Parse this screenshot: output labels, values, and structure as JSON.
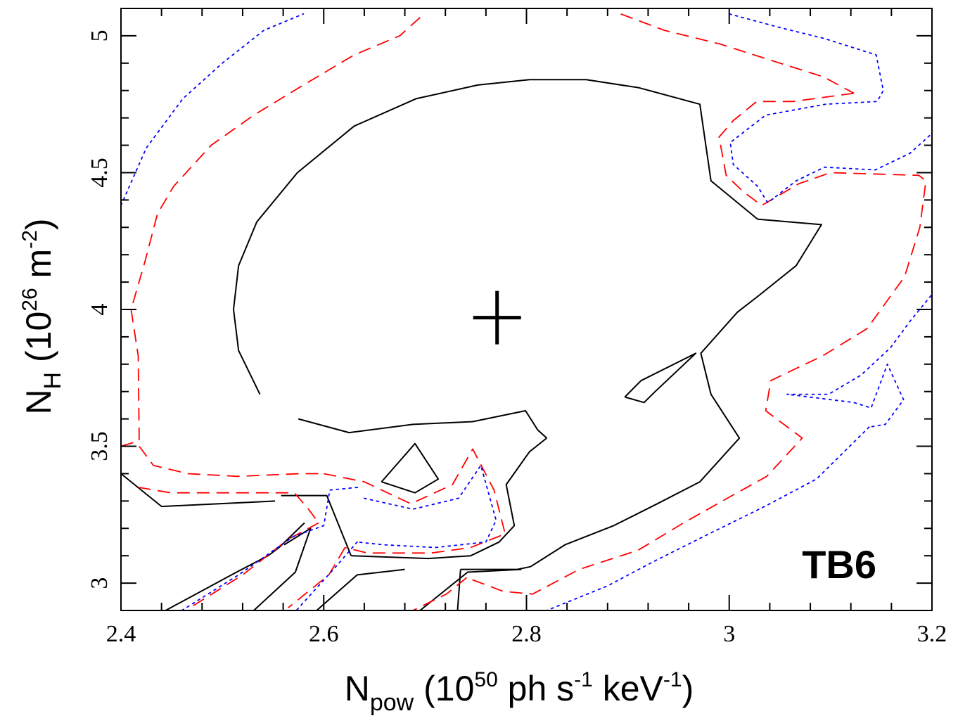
{
  "chart_data": {
    "type": "contour",
    "panel_label": "TB6",
    "xlabel": {
      "base": "N",
      "sub": "pow",
      "rest1": " (10",
      "sup1": "50",
      "rest2": " ph s",
      "sup2": "-1",
      "rest3": " keV",
      "sup3": "-1",
      "rest4": ")"
    },
    "ylabel": {
      "base": "N",
      "sub": "H",
      "rest1": " (10",
      "sup1": "26",
      "rest2": " m",
      "sup2": "-2",
      "rest3": ")"
    },
    "xlim": [
      2.4,
      3.2
    ],
    "ylim": [
      2.9,
      5.1
    ],
    "xticks": [
      {
        "value": 2.4,
        "label": "2.4"
      },
      {
        "value": 2.6,
        "label": "2.6"
      },
      {
        "value": 2.8,
        "label": "2.8"
      },
      {
        "value": 3.0,
        "label": "3"
      },
      {
        "value": 3.2,
        "label": "3.2"
      }
    ],
    "yticks": [
      {
        "value": 3.0,
        "label": "3"
      },
      {
        "value": 3.5,
        "label": "3.5"
      },
      {
        "value": 4.0,
        "label": "4"
      },
      {
        "value": 4.5,
        "label": "4.5"
      },
      {
        "value": 5.0,
        "label": "5"
      }
    ],
    "best_fit": {
      "x": 2.771,
      "y": 3.97
    },
    "contours": [
      {
        "level": "solid",
        "color": "#000000",
        "dash": "",
        "paths": [
          [
            [
              2.537,
              3.69
            ],
            [
              2.516,
              3.85
            ],
            [
              2.511,
              4.0
            ],
            [
              2.516,
              4.16
            ],
            [
              2.534,
              4.32
            ],
            [
              2.574,
              4.5
            ],
            [
              2.63,
              4.67
            ],
            [
              2.691,
              4.77
            ],
            [
              2.752,
              4.82
            ],
            [
              2.803,
              4.84
            ],
            [
              2.859,
              4.84
            ],
            [
              2.911,
              4.81
            ],
            [
              2.971,
              4.75
            ],
            [
              2.982,
              4.47
            ],
            [
              3.028,
              4.33
            ],
            [
              3.091,
              4.31
            ],
            [
              3.066,
              4.16
            ],
            [
              3.029,
              4.05
            ],
            [
              3.008,
              3.99
            ],
            [
              2.972,
              3.84
            ],
            [
              2.982,
              3.69
            ],
            [
              3.01,
              3.53
            ],
            [
              2.971,
              3.37
            ],
            [
              2.929,
              3.29
            ],
            [
              2.886,
              3.21
            ],
            [
              2.838,
              3.14
            ],
            [
              2.804,
              3.06
            ],
            [
              2.791,
              3.05
            ],
            [
              2.739,
              3.05
            ],
            [
              2.735,
              3.05
            ]
          ],
          [
            [
              2.732,
              2.9
            ],
            [
              2.735,
              3.05
            ]
          ],
          [
            [
              2.575,
              3.6
            ],
            [
              2.625,
              3.55
            ],
            [
              2.688,
              3.58
            ],
            [
              2.747,
              3.59
            ],
            [
              2.799,
              3.63
            ],
            [
              2.811,
              3.56
            ],
            [
              2.82,
              3.53
            ]
          ],
          [
            [
              2.82,
              3.53
            ],
            [
              2.803,
              3.48
            ],
            [
              2.78,
              3.36
            ],
            [
              2.788,
              3.21
            ],
            [
              2.773,
              3.15
            ],
            [
              2.745,
              3.1
            ],
            [
              2.703,
              3.09
            ],
            [
              2.628,
              3.1
            ],
            [
              2.627,
              3.1
            ]
          ],
          [
            [
              2.558,
              3.32
            ],
            [
              2.603,
              3.32
            ],
            [
              2.627,
              3.1
            ]
          ],
          [
            [
              2.561,
              3.14
            ],
            [
              2.587,
              3.2
            ],
            [
              2.572,
              3.04
            ],
            [
              2.531,
              2.9
            ]
          ],
          [
            [
              2.4,
              3.4
            ],
            [
              2.44,
              3.28
            ],
            [
              2.497,
              3.29
            ],
            [
              2.552,
              3.3
            ]
          ],
          [
            [
              2.657,
              3.37
            ],
            [
              2.69,
              3.51
            ],
            [
              2.713,
              3.38
            ],
            [
              2.69,
              3.33
            ],
            [
              2.657,
              3.37
            ]
          ],
          [
            [
              2.897,
              3.68
            ],
            [
              2.913,
              3.74
            ],
            [
              2.967,
              3.84
            ],
            [
              2.927,
              3.7
            ],
            [
              2.916,
              3.66
            ],
            [
              2.897,
              3.68
            ]
          ],
          [
            [
              2.444,
              2.9
            ],
            [
              2.514,
              3.04
            ],
            [
              2.545,
              3.1
            ],
            [
              2.556,
              3.13
            ],
            [
              2.581,
              3.22
            ]
          ],
          [
            [
              2.593,
              2.9
            ],
            [
              2.633,
              3.03
            ],
            [
              2.68,
              3.05
            ]
          ],
          [
            [
              2.695,
              2.9
            ],
            [
              2.742,
              3.04
            ],
            [
              2.795,
              3.05
            ]
          ]
        ]
      },
      {
        "level": "dashed",
        "color": "#ff0000",
        "dash": "18,10",
        "paths": [
          [
            [
              2.4,
              3.5
            ],
            [
              2.418,
              3.52
            ],
            [
              2.417,
              3.83
            ],
            [
              2.41,
              4.0
            ],
            [
              2.424,
              4.18
            ],
            [
              2.436,
              4.35
            ],
            [
              2.452,
              4.45
            ],
            [
              2.489,
              4.6
            ],
            [
              2.531,
              4.71
            ],
            [
              2.58,
              4.82
            ],
            [
              2.63,
              4.93
            ],
            [
              2.675,
              5.0
            ],
            [
              2.699,
              5.08
            ]
          ],
          [
            [
              2.893,
              5.08
            ],
            [
              2.936,
              5.02
            ],
            [
              2.991,
              4.97
            ],
            [
              3.05,
              4.9
            ],
            [
              3.093,
              4.85
            ],
            [
              3.123,
              4.79
            ]
          ],
          [
            [
              3.123,
              4.79
            ],
            [
              3.063,
              4.76
            ],
            [
              3.027,
              4.76
            ],
            [
              3.004,
              4.69
            ],
            [
              2.99,
              4.63
            ],
            [
              2.997,
              4.49
            ],
            [
              3.014,
              4.43
            ],
            [
              3.032,
              4.38
            ],
            [
              3.069,
              4.46
            ],
            [
              3.1,
              4.5
            ],
            [
              3.187,
              4.49
            ],
            [
              3.194,
              4.47
            ],
            [
              3.188,
              4.3
            ],
            [
              3.173,
              4.12
            ],
            [
              3.136,
              3.93
            ],
            [
              3.092,
              3.83
            ],
            [
              3.041,
              3.74
            ],
            [
              3.036,
              3.63
            ],
            [
              3.072,
              3.53
            ],
            [
              3.037,
              3.39
            ],
            [
              2.998,
              3.31
            ],
            [
              2.955,
              3.22
            ],
            [
              2.91,
              3.12
            ],
            [
              2.852,
              3.05
            ],
            [
              2.806,
              2.96
            ],
            [
              2.777,
              2.97
            ],
            [
              2.741,
              3.02
            ]
          ],
          [
            [
              2.741,
              3.02
            ],
            [
              2.721,
              2.96
            ],
            [
              2.688,
              2.9
            ]
          ],
          [
            [
              2.418,
              3.5
            ],
            [
              2.432,
              3.43
            ],
            [
              2.466,
              3.4
            ],
            [
              2.515,
              3.39
            ],
            [
              2.576,
              3.4
            ],
            [
              2.6,
              3.4
            ]
          ],
          [
            [
              2.6,
              3.4
            ],
            [
              2.64,
              3.37
            ],
            [
              2.686,
              3.29
            ],
            [
              2.727,
              3.36
            ],
            [
              2.747,
              3.49
            ],
            [
              2.768,
              3.34
            ],
            [
              2.779,
              3.18
            ],
            [
              2.745,
              3.13
            ],
            [
              2.706,
              3.11
            ],
            [
              2.643,
              3.11
            ],
            [
              2.621,
              3.13
            ]
          ],
          [
            [
              2.621,
              3.13
            ],
            [
              2.605,
              3.03
            ],
            [
              2.565,
              2.91
            ]
          ],
          [
            [
              2.417,
              3.35
            ],
            [
              2.449,
              3.33
            ],
            [
              2.508,
              3.33
            ],
            [
              2.571,
              3.33
            ],
            [
              2.585,
              3.27
            ],
            [
              2.595,
              3.22
            ]
          ],
          [
            [
              2.595,
              3.22
            ],
            [
              2.565,
              3.16
            ],
            [
              2.52,
              3.03
            ],
            [
              2.468,
              2.91
            ]
          ]
        ]
      },
      {
        "level": "dotted",
        "color": "#0000ff",
        "dash": "3,6",
        "paths": [
          [
            [
              2.4,
              4.38
            ],
            [
              2.425,
              4.59
            ],
            [
              2.461,
              4.77
            ],
            [
              2.5,
              4.9
            ],
            [
              2.541,
              5.02
            ],
            [
              2.58,
              5.08
            ]
          ],
          [
            [
              3.0,
              5.08
            ],
            [
              3.05,
              5.03
            ],
            [
              3.094,
              4.99
            ],
            [
              3.145,
              4.93
            ],
            [
              3.152,
              4.8
            ],
            [
              3.146,
              4.76
            ],
            [
              3.095,
              4.75
            ],
            [
              3.036,
              4.71
            ],
            [
              3.001,
              4.61
            ],
            [
              3.004,
              4.53
            ],
            [
              3.028,
              4.45
            ],
            [
              3.038,
              4.39
            ],
            [
              3.066,
              4.47
            ],
            [
              3.094,
              4.52
            ],
            [
              3.144,
              4.51
            ],
            [
              3.178,
              4.57
            ],
            [
              3.199,
              4.64
            ]
          ],
          [
            [
              3.199,
              4.05
            ],
            [
              3.179,
              3.96
            ],
            [
              3.159,
              3.86
            ],
            [
              3.13,
              3.76
            ],
            [
              3.098,
              3.69
            ],
            [
              3.057,
              3.69
            ],
            [
              3.123,
              3.66
            ],
            [
              3.14,
              3.64
            ],
            [
              3.156,
              3.8
            ],
            [
              3.172,
              3.67
            ],
            [
              3.154,
              3.58
            ],
            [
              3.138,
              3.57
            ]
          ],
          [
            [
              3.138,
              3.57
            ],
            [
              3.086,
              3.38
            ],
            [
              3.035,
              3.28
            ],
            [
              2.98,
              3.18
            ],
            [
              2.926,
              3.08
            ],
            [
              2.88,
              2.99
            ],
            [
              2.82,
              2.9
            ]
          ],
          [
            [
              2.64,
              3.31
            ],
            [
              2.688,
              3.27
            ],
            [
              2.733,
              3.31
            ],
            [
              2.755,
              3.43
            ],
            [
              2.77,
              3.23
            ],
            [
              2.76,
              3.15
            ],
            [
              2.71,
              3.13
            ],
            [
              2.659,
              3.14
            ],
            [
              2.633,
              3.15
            ]
          ],
          [
            [
              2.633,
              3.15
            ],
            [
              2.612,
              3.06
            ],
            [
              2.573,
              2.9
            ]
          ],
          [
            [
              2.46,
              2.9
            ],
            [
              2.516,
              3.03
            ],
            [
              2.57,
              3.17
            ],
            [
              2.6,
              3.21
            ],
            [
              2.606,
              3.34
            ],
            [
              2.634,
              3.35
            ]
          ]
        ]
      }
    ]
  }
}
